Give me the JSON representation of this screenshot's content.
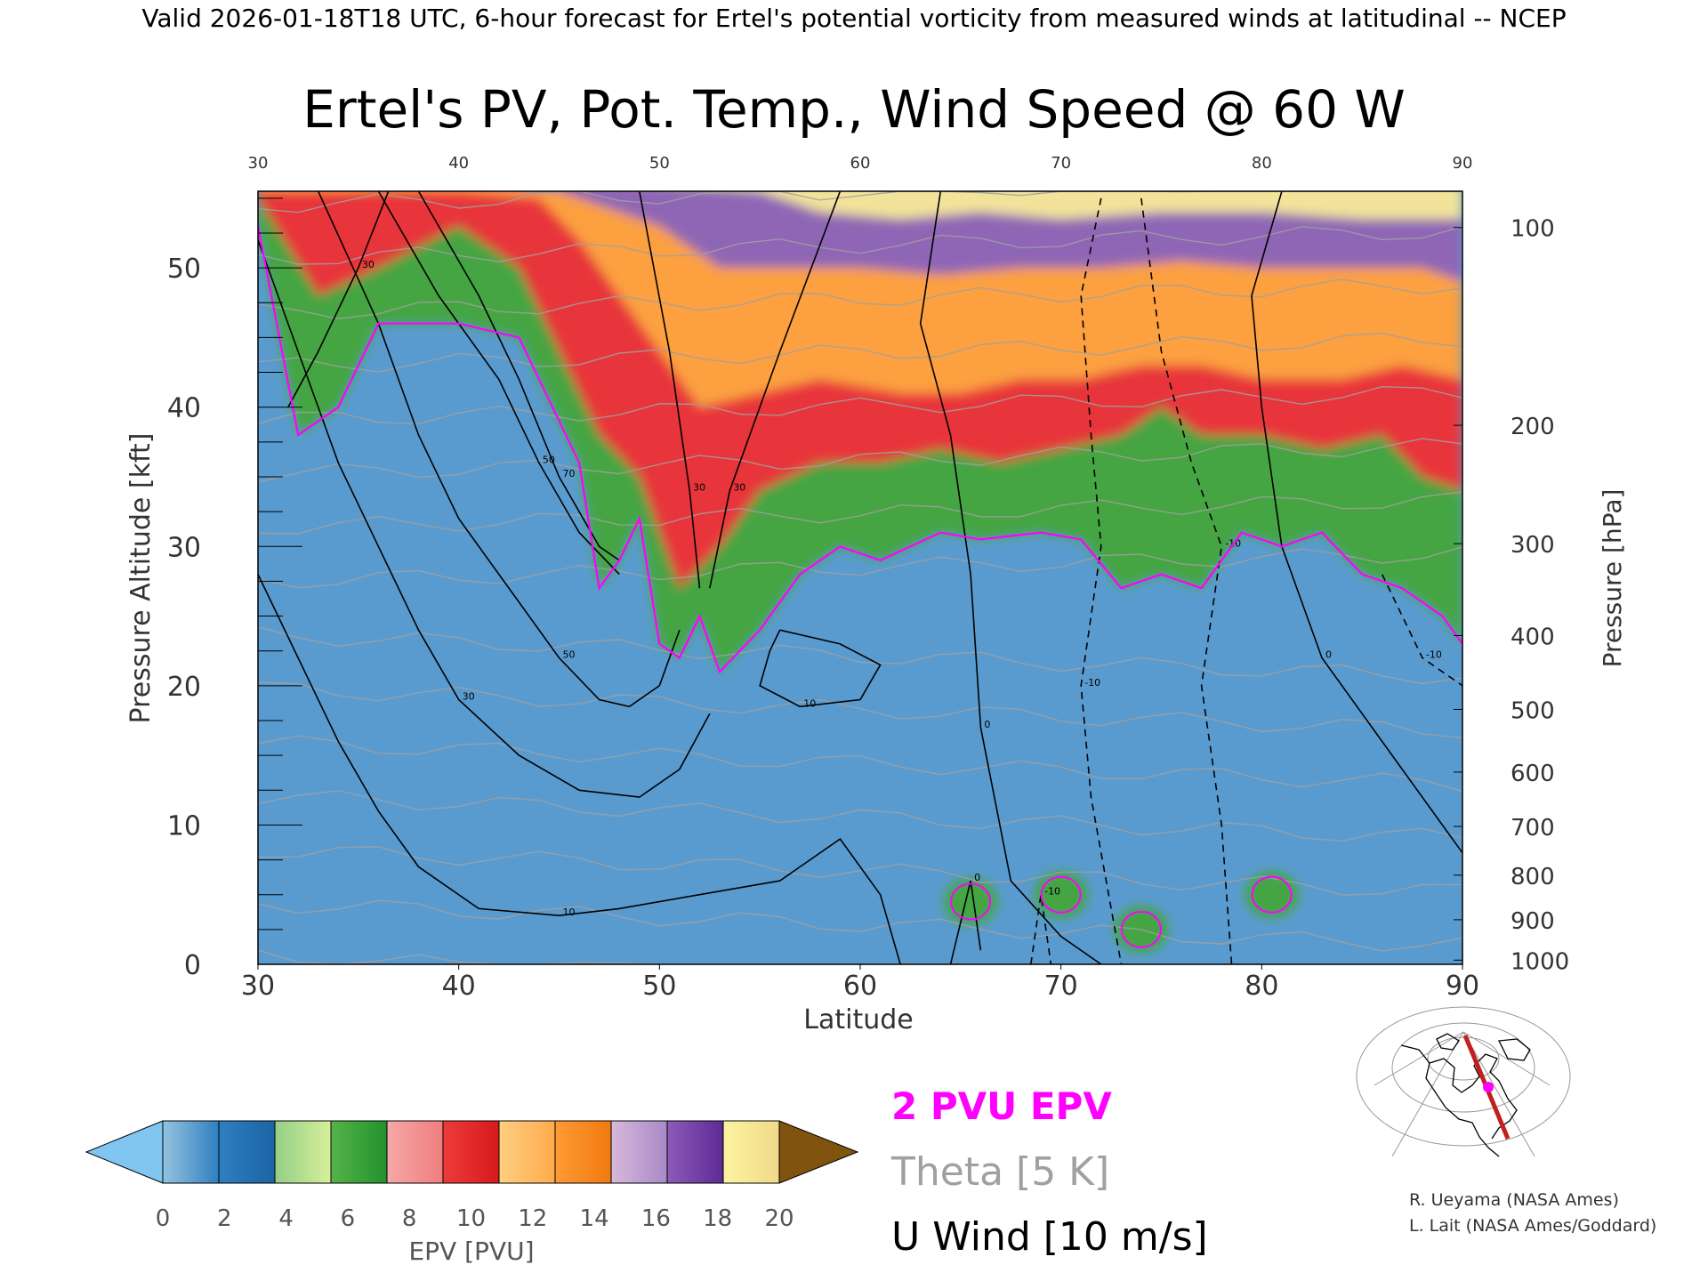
{
  "header": {
    "valid_line": "Valid 2026-01-18T18 UTC, 6-hour forecast for Ertel's potential vorticity from measured winds at latitudinal -- NCEP"
  },
  "chart_data": {
    "type": "heatmap",
    "title": "Ertel's PV, Pot. Temp., Wind Speed @ 60 W",
    "xlabel": "Latitude",
    "ylabel_left": "Pressure Altitude [kft]",
    "ylabel_right": "Pressure [hPa]",
    "xlim": [
      30,
      90
    ],
    "ylim": [
      0,
      55.5
    ],
    "x_ticks": [
      "30",
      "40",
      "50",
      "60",
      "70",
      "80",
      "90"
    ],
    "y_ticks": [
      "0",
      "10",
      "20",
      "30",
      "40",
      "50"
    ],
    "pressure_ticks": [
      {
        "label": "100",
        "kft": 52.9
      },
      {
        "label": "200",
        "kft": 38.7
      },
      {
        "label": "300",
        "kft": 30.2
      },
      {
        "label": "400",
        "kft": 23.6
      },
      {
        "label": "500",
        "kft": 18.3
      },
      {
        "label": "600",
        "kft": 13.8
      },
      {
        "label": "700",
        "kft": 9.9
      },
      {
        "label": "800",
        "kft": 6.4
      },
      {
        "label": "900",
        "kft": 3.2
      },
      {
        "label": "1000",
        "kft": 0.3
      }
    ],
    "colorbar": {
      "label": "EPV [PVU]",
      "ticks": [
        "0",
        "2",
        "4",
        "6",
        "8",
        "10",
        "12",
        "14",
        "16",
        "18",
        "20"
      ],
      "under_color": "#7fc6f2",
      "over_color": "#80540e",
      "bins": [
        [
          "#94c3e0",
          "#2f7fbf"
        ],
        [
          "#2f7fbf",
          "#1c64a5"
        ],
        [
          "#93cf86",
          "#d8ef9b"
        ],
        [
          "#56b34a",
          "#22912c"
        ],
        [
          "#f5a8a8",
          "#f07d7d"
        ],
        [
          "#ee3b3b",
          "#d61a1a"
        ],
        [
          "#ffcf80",
          "#ffaa4d"
        ],
        [
          "#ff9a33",
          "#f07a10"
        ],
        [
          "#d8b8dc",
          "#a889c4"
        ],
        [
          "#8e5bb8",
          "#5c2a95"
        ],
        [
          "#fbf4a0",
          "#f0d98a"
        ]
      ]
    },
    "epv_zones": [
      {
        "name": "tropospheric-0-2",
        "color": "#5a9bcf"
      },
      {
        "name": "pv-2-6",
        "color": "#44a542"
      },
      {
        "name": "pv-6-10",
        "color": "#e8363a"
      },
      {
        "name": "pv-10-14",
        "color": "#fca041"
      },
      {
        "name": "pv-14-18",
        "color": "#8f66b5"
      },
      {
        "name": "pv-18-20",
        "color": "#f3e39a"
      }
    ],
    "two_pvu_line": [
      [
        30,
        53
      ],
      [
        32,
        38
      ],
      [
        34,
        40
      ],
      [
        36,
        46
      ],
      [
        40,
        46
      ],
      [
        43,
        45
      ],
      [
        46,
        36
      ],
      [
        47,
        27
      ],
      [
        48,
        29
      ],
      [
        49,
        32
      ],
      [
        50,
        23
      ],
      [
        51,
        22
      ],
      [
        52,
        25
      ],
      [
        53,
        21
      ],
      [
        55,
        24
      ],
      [
        57,
        28
      ],
      [
        59,
        30
      ],
      [
        61,
        29
      ],
      [
        64,
        31
      ],
      [
        66,
        30.5
      ],
      [
        69,
        31
      ],
      [
        71,
        30.5
      ],
      [
        73,
        27
      ],
      [
        75,
        28
      ],
      [
        77,
        27
      ],
      [
        79,
        31
      ],
      [
        81,
        30
      ],
      [
        83,
        31
      ],
      [
        85,
        28
      ],
      [
        87,
        27
      ],
      [
        89,
        25
      ],
      [
        90,
        23
      ]
    ],
    "pv_6_line": [
      [
        30,
        55
      ],
      [
        33,
        48
      ],
      [
        36,
        50
      ],
      [
        40,
        53
      ],
      [
        43,
        50
      ],
      [
        45,
        44
      ],
      [
        47,
        38
      ],
      [
        49,
        35
      ],
      [
        51,
        27
      ],
      [
        53,
        30
      ],
      [
        55,
        34
      ],
      [
        58,
        36
      ],
      [
        61,
        36
      ],
      [
        64,
        37
      ],
      [
        67,
        36
      ],
      [
        70,
        37
      ],
      [
        73,
        38
      ],
      [
        75,
        40
      ],
      [
        77,
        38
      ],
      [
        80,
        38
      ],
      [
        83,
        37
      ],
      [
        86,
        38
      ],
      [
        88,
        35
      ],
      [
        90,
        34
      ]
    ],
    "pv_10_line": [
      [
        30,
        55.5
      ],
      [
        40,
        55.5
      ],
      [
        44,
        55
      ],
      [
        46,
        52
      ],
      [
        48,
        48
      ],
      [
        50,
        44
      ],
      [
        52,
        40
      ],
      [
        55,
        41
      ],
      [
        58,
        42
      ],
      [
        62,
        41
      ],
      [
        65,
        41
      ],
      [
        68,
        42
      ],
      [
        71,
        42
      ],
      [
        74,
        43
      ],
      [
        77,
        43
      ],
      [
        80,
        42
      ],
      [
        84,
        42
      ],
      [
        87,
        43
      ],
      [
        90,
        42
      ]
    ],
    "pv_14_line": [
      [
        45,
        55.5
      ],
      [
        50,
        53
      ],
      [
        53,
        50
      ],
      [
        56,
        50
      ],
      [
        60,
        50
      ],
      [
        64,
        49.5
      ],
      [
        68,
        50
      ],
      [
        72,
        50
      ],
      [
        76,
        50.5
      ],
      [
        80,
        50
      ],
      [
        84,
        50
      ],
      [
        88,
        50
      ],
      [
        90,
        49
      ]
    ],
    "pv_18_line": [
      [
        55,
        55.5
      ],
      [
        58,
        54
      ],
      [
        62,
        53.5
      ],
      [
        66,
        54
      ],
      [
        70,
        53.5
      ],
      [
        75,
        54
      ],
      [
        80,
        54
      ],
      [
        85,
        53.5
      ],
      [
        90,
        53.5
      ]
    ],
    "near_surface_pv": [
      {
        "lat": 65.5,
        "kft": 4.5
      },
      {
        "lat": 70,
        "kft": 5
      },
      {
        "lat": 74,
        "kft": 2.5
      },
      {
        "lat": 80.5,
        "kft": 5
      }
    ],
    "theta_levels_K": [
      260,
      270,
      280,
      290,
      300,
      310,
      320,
      330,
      340,
      350,
      360,
      380,
      400,
      440,
      480
    ],
    "u_wind_contours": [
      {
        "label": "30",
        "path": [
          [
            31.5,
            40
          ],
          [
            33,
            44
          ],
          [
            35,
            50
          ],
          [
            36.5,
            55.5
          ]
        ]
      },
      {
        "label": "50",
        "path": [
          [
            36,
            55.5
          ],
          [
            39,
            48
          ],
          [
            42,
            42
          ],
          [
            44,
            36
          ],
          [
            46,
            31
          ],
          [
            48,
            28
          ]
        ]
      },
      {
        "label": "70",
        "path": [
          [
            38,
            55.5
          ],
          [
            41,
            48
          ],
          [
            43,
            42
          ],
          [
            45,
            35
          ],
          [
            47,
            30
          ],
          [
            48,
            29
          ]
        ]
      },
      {
        "label": "50",
        "path": [
          [
            33,
            55.5
          ],
          [
            36,
            46
          ],
          [
            38,
            38
          ],
          [
            40,
            32
          ],
          [
            43,
            26
          ],
          [
            45,
            22
          ],
          [
            47,
            19
          ],
          [
            48.5,
            18.5
          ],
          [
            50,
            20
          ],
          [
            51,
            24
          ]
        ]
      },
      {
        "label": "30",
        "path": [
          [
            30,
            52
          ],
          [
            32,
            44
          ],
          [
            34,
            36
          ],
          [
            36,
            30
          ],
          [
            38,
            24
          ],
          [
            40,
            19
          ],
          [
            43,
            15
          ],
          [
            46,
            12.5
          ],
          [
            49,
            12
          ],
          [
            51,
            14
          ],
          [
            52.5,
            18
          ]
        ]
      },
      {
        "label": "10",
        "path": [
          [
            30,
            28
          ],
          [
            32,
            22
          ],
          [
            34,
            16
          ],
          [
            36,
            11
          ],
          [
            38,
            7
          ],
          [
            41,
            4
          ],
          [
            45,
            3.5
          ],
          [
            48,
            4
          ],
          [
            52,
            5
          ],
          [
            56,
            6
          ],
          [
            59,
            9
          ],
          [
            61,
            5
          ],
          [
            62,
            0
          ]
        ]
      },
      {
        "label": "30",
        "path": [
          [
            49,
            55.5
          ],
          [
            50.5,
            44
          ],
          [
            51.5,
            34
          ],
          [
            52,
            27
          ]
        ]
      },
      {
        "label": "30",
        "path": [
          [
            59,
            55.5
          ],
          [
            56,
            44
          ],
          [
            53.5,
            34
          ],
          [
            52.5,
            27
          ]
        ]
      },
      {
        "label": "10",
        "path": [
          [
            56,
            24
          ],
          [
            59,
            23
          ],
          [
            61,
            21.5
          ],
          [
            60,
            19
          ],
          [
            57,
            18.5
          ],
          [
            55,
            20
          ],
          [
            55.5,
            22.5
          ],
          [
            56,
            24
          ]
        ]
      },
      {
        "label": "0",
        "path": [
          [
            64,
            55.5
          ],
          [
            63,
            46
          ],
          [
            64.5,
            38
          ],
          [
            65.5,
            28
          ],
          [
            66,
            17
          ],
          [
            67.5,
            6
          ],
          [
            70,
            2
          ],
          [
            72,
            0
          ]
        ]
      },
      {
        "label": "-10",
        "path": [
          [
            72,
            55
          ],
          [
            71,
            48
          ],
          [
            71.5,
            38
          ],
          [
            72,
            30
          ],
          [
            71,
            20
          ],
          [
            71.5,
            12
          ],
          [
            72.5,
            4
          ],
          [
            73,
            0
          ]
        ]
      },
      {
        "label": "-10",
        "path": [
          [
            74,
            55
          ],
          [
            75,
            44
          ],
          [
            76.5,
            36
          ],
          [
            78,
            30
          ],
          [
            77,
            20
          ],
          [
            78,
            10
          ],
          [
            78.5,
            0
          ]
        ]
      },
      {
        "label": "0",
        "path": [
          [
            81,
            55.5
          ],
          [
            79.5,
            48
          ],
          [
            80,
            40
          ],
          [
            81,
            30
          ],
          [
            83,
            22
          ],
          [
            86,
            16
          ],
          [
            89,
            10
          ],
          [
            90,
            8
          ]
        ]
      },
      {
        "label": "-10",
        "path": [
          [
            86,
            28
          ],
          [
            88,
            22
          ],
          [
            90,
            20
          ]
        ]
      },
      {
        "label": "0",
        "path": [
          [
            64.5,
            0
          ],
          [
            65.5,
            6
          ],
          [
            66,
            1
          ]
        ]
      },
      {
        "label": "-10",
        "path": [
          [
            68.5,
            0
          ],
          [
            69,
            5
          ],
          [
            69.5,
            0
          ]
        ]
      }
    ],
    "map_inset": {
      "credits": [
        "R. Ueyama (NASA Ames)",
        "L. Lait (NASA Ames/Goddard)"
      ]
    },
    "legend": [
      {
        "label": "2 PVU EPV",
        "color": "#ff00ff"
      },
      {
        "label": "Theta [5 K]",
        "color": "#a0a0a0"
      },
      {
        "label": "U Wind [10 m/s]",
        "color": "#000000"
      }
    ]
  }
}
